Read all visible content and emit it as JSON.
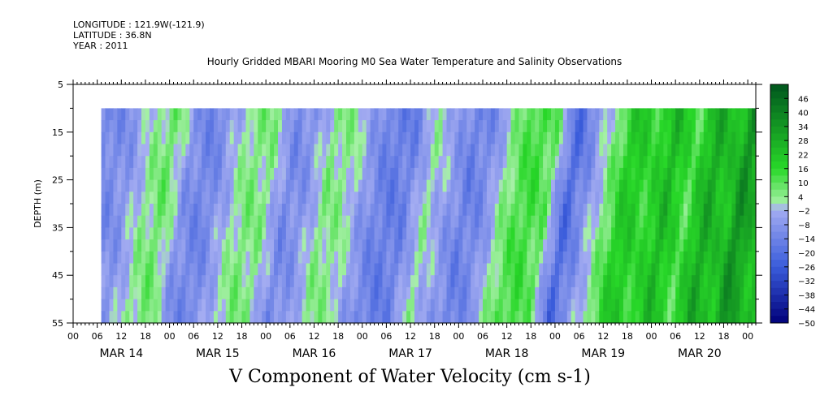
{
  "header": {
    "longitude": "LONGITUDE : 121.9W(-121.9)",
    "latitude": "LATITUDE : 36.8N",
    "year": "YEAR : 2011"
  },
  "chart_data": {
    "type": "heatmap",
    "title": "Hourly Gridded MBARI Mooring M0 Sea Water Temperature and Salinity Observations",
    "subtitle": "V Component of Water Velocity (cm s-1)",
    "ylabel": "DEPTH (m)",
    "xlabel": "",
    "y_ticks": [
      5,
      15,
      25,
      35,
      45,
      55
    ],
    "ylim": [
      55,
      5
    ],
    "y_reversed": true,
    "x_hour_ticks": [
      "00",
      "06",
      "12",
      "18",
      "00",
      "06",
      "12",
      "18",
      "00",
      "06",
      "12",
      "18",
      "00",
      "06",
      "12",
      "18",
      "00",
      "06",
      "12",
      "18",
      "00",
      "06",
      "12",
      "18",
      "00",
      "06",
      "12",
      "18",
      "00"
    ],
    "x_date_labels": [
      "MAR 14",
      "MAR 15",
      "MAR 16",
      "MAR 17",
      "MAR 18",
      "MAR 19",
      "MAR 20"
    ],
    "xlim_hours": [
      0,
      170
    ],
    "data_start_hour": 7,
    "data_depth_range": [
      10,
      55
    ],
    "colorbar": {
      "labels": [
        46,
        40,
        34,
        28,
        22,
        16,
        10,
        4,
        -2,
        -8,
        -14,
        -20,
        -26,
        -32,
        -38,
        -44,
        -50
      ],
      "min": -50,
      "max": 52,
      "step": 3
    },
    "colors": {
      "neg_low": "#00007a",
      "neg_mid": "#3a5cdb",
      "neg_light": "#a6aef2",
      "pos_light": "#a6f0a6",
      "pos_mid": "#28d828",
      "pos_high": "#00561e"
    },
    "field_profile_cm_s": [
      {
        "hour": 7,
        "v": -12
      },
      {
        "hour": 12,
        "v": -8
      },
      {
        "hour": 17,
        "v": 3
      },
      {
        "hour": 22,
        "v": 8
      },
      {
        "hour": 27,
        "v": -10
      },
      {
        "hour": 32,
        "v": -14
      },
      {
        "hour": 37,
        "v": -4
      },
      {
        "hour": 42,
        "v": 6
      },
      {
        "hour": 47,
        "v": 4
      },
      {
        "hour": 52,
        "v": -12
      },
      {
        "hour": 57,
        "v": -8
      },
      {
        "hour": 62,
        "v": 5
      },
      {
        "hour": 67,
        "v": 3
      },
      {
        "hour": 72,
        "v": -9
      },
      {
        "hour": 77,
        "v": -16
      },
      {
        "hour": 82,
        "v": -14
      },
      {
        "hour": 87,
        "v": 2
      },
      {
        "hour": 92,
        "v": -6
      },
      {
        "hour": 97,
        "v": -15
      },
      {
        "hour": 102,
        "v": -10
      },
      {
        "hour": 107,
        "v": 6
      },
      {
        "hour": 112,
        "v": 14
      },
      {
        "hour": 117,
        "v": 8
      },
      {
        "hour": 122,
        "v": -22
      },
      {
        "hour": 127,
        "v": -8
      },
      {
        "hour": 132,
        "v": 6
      },
      {
        "hour": 137,
        "v": 22
      },
      {
        "hour": 142,
        "v": 14
      },
      {
        "hour": 147,
        "v": 26
      },
      {
        "hour": 152,
        "v": 10
      },
      {
        "hour": 157,
        "v": 30
      },
      {
        "hour": 162,
        "v": 20
      },
      {
        "hour": 166,
        "v": 38
      },
      {
        "hour": 169,
        "v": 24
      }
    ]
  }
}
